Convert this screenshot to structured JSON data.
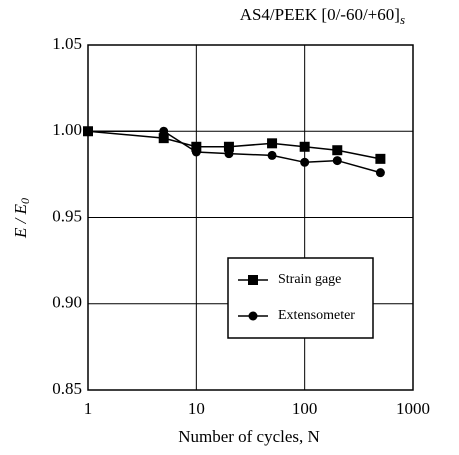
{
  "chart_data": {
    "type": "line",
    "title": "AS4/PEEK [0/-60/+60]",
    "title_subscript": "s",
    "ylabel": "E / E",
    "ylabel_subscript": "0",
    "xlabel": "Number of cycles, N",
    "x": [
      1,
      5,
      10,
      20,
      50,
      100,
      200,
      500
    ],
    "series": [
      {
        "name": "Strain gage",
        "color": "#000000",
        "marker": "square",
        "values": [
          1.0,
          0.996,
          0.991,
          0.991,
          0.993,
          0.991,
          0.989,
          0.984
        ]
      },
      {
        "name": "Extensometer",
        "color": "#000000",
        "marker": "circle",
        "values": [
          1.0,
          1.0,
          0.988,
          0.987,
          0.986,
          0.982,
          0.983,
          0.976
        ]
      }
    ],
    "xlim": [
      1,
      1000
    ],
    "xticks": [
      1,
      10,
      100,
      1000
    ],
    "xscale": "log",
    "ylim": [
      0.85,
      1.05
    ],
    "yticks": [
      {
        "value": 0.85,
        "label": "0.85"
      },
      {
        "value": 0.9,
        "label": "0.90"
      },
      {
        "value": 0.95,
        "label": "0.95"
      },
      {
        "value": 1.0,
        "label": "1.00"
      },
      {
        "value": 1.05,
        "label": "1.05"
      }
    ],
    "grid": true,
    "legend": "lower right"
  }
}
